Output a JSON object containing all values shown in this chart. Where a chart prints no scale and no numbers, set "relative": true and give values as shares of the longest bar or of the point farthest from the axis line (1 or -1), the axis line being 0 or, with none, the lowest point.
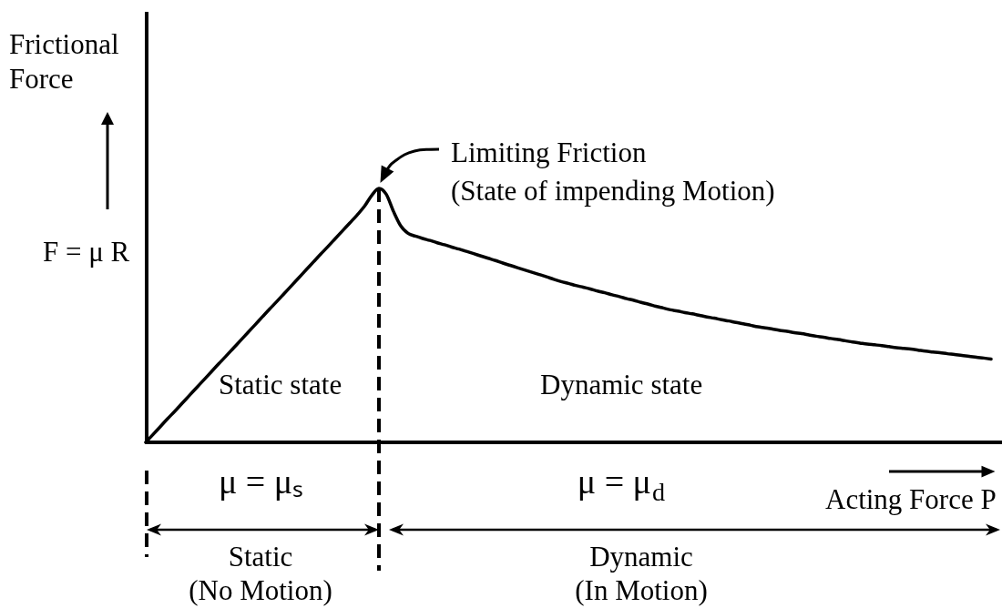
{
  "chart_data": {
    "type": "line",
    "relative": true,
    "xlabel": "Acting Force P",
    "ylabel": "Frictional\nForce",
    "categories": [
      null,
      null,
      null,
      null,
      null,
      null,
      null,
      null,
      null,
      null,
      null,
      null,
      null,
      null,
      null,
      null,
      null,
      null,
      null,
      null,
      null,
      null,
      null,
      null,
      null,
      null,
      null,
      null,
      null,
      null,
      null,
      null,
      null,
      null,
      null,
      null,
      null,
      null,
      null,
      null,
      null,
      null,
      null,
      null,
      null,
      null,
      null,
      null,
      null,
      null,
      null,
      null,
      null,
      null,
      null,
      null,
      null,
      null,
      null,
      null,
      null,
      null,
      null,
      null,
      null,
      null,
      null,
      null,
      null,
      null,
      null,
      null,
      null,
      null,
      null,
      null,
      null,
      null,
      null,
      null,
      null,
      null,
      null,
      null,
      null,
      null,
      null,
      null,
      null,
      null,
      null,
      null,
      null,
      null,
      null,
      null,
      null,
      null,
      null,
      null,
      null,
      null,
      null,
      null,
      null,
      null,
      null,
      null,
      null,
      null,
      null,
      null,
      null,
      null,
      null,
      null,
      null
    ],
    "series": [
      {
        "color": "#000000",
        "values": [
          0,
          0.031,
          0.062,
          0.093,
          0.123,
          0.154,
          0.185,
          0.216,
          0.247,
          0.278,
          0.309,
          0.339,
          0.37,
          0.401,
          0.432,
          0.463,
          0.494,
          0.525,
          0.555,
          0.586,
          0.617,
          0.648,
          0.679,
          0.71,
          0.741,
          0.771,
          0.802,
          0.833,
          0.864,
          0.895,
          0.929,
          0.972,
          1,
          0.977,
          0.909,
          0.852,
          0.823,
          0.812,
          0.803,
          0.795,
          0.786,
          0.778,
          0.769,
          0.761,
          0.752,
          0.743,
          0.734,
          0.725,
          0.716,
          0.706,
          0.697,
          0.688,
          0.679,
          0.67,
          0.661,
          0.652,
          0.642,
          0.633,
          0.626,
          0.618,
          0.611,
          0.604,
          0.596,
          0.589,
          0.581,
          0.574,
          0.566,
          0.559,
          0.551,
          0.544,
          0.536,
          0.529,
          0.522,
          0.517,
          0.511,
          0.506,
          0.5,
          0.494,
          0.489,
          0.483,
          0.478,
          0.472,
          0.467,
          0.461,
          0.455,
          0.451,
          0.446,
          0.441,
          0.437,
          0.432,
          0.428,
          0.423,
          0.418,
          0.414,
          0.409,
          0.405,
          0.4,
          0.395,
          0.391,
          0.387,
          0.384,
          0.381,
          0.377,
          0.373,
          0.37,
          0.367,
          0.363,
          0.359,
          0.356,
          0.353,
          0.349,
          0.346,
          0.342,
          0.339,
          0.335,
          0.332,
          0.328
        ]
      }
    ],
    "annotations": [
      "F = μ R",
      "Static state",
      "Dynamic state",
      "Limiting Friction\n(State of impending Motion)",
      "μ = μₛ",
      "μ = μ$_{d}$",
      "Static\n(No Motion)",
      "Dynamic\n(In Motion)"
    ]
  }
}
